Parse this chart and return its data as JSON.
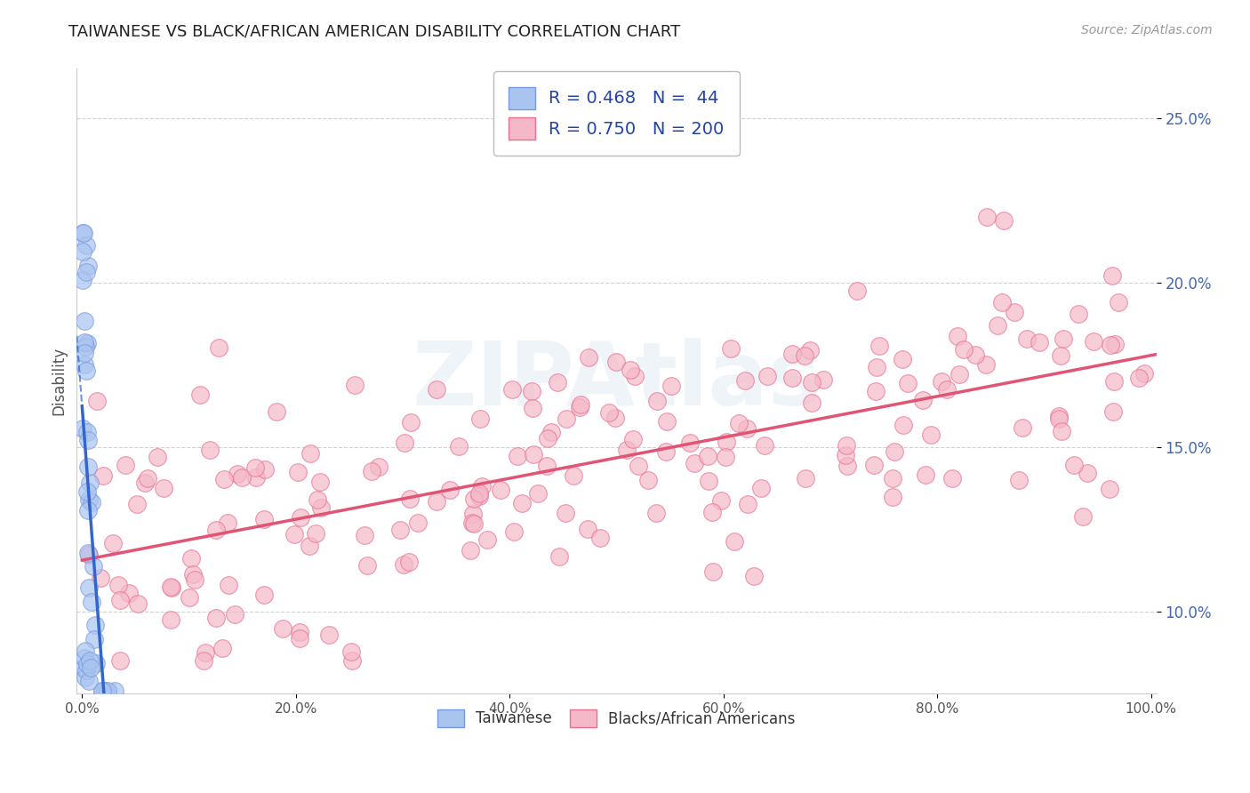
{
  "title": "TAIWANESE VS BLACK/AFRICAN AMERICAN DISABILITY CORRELATION CHART",
  "source": "Source: ZipAtlas.com",
  "ylabel": "Disability",
  "r_taiwanese": 0.468,
  "n_taiwanese": 44,
  "r_black": 0.75,
  "n_black": 200,
  "taiwanese_scatter_color": "#aac4f0",
  "taiwanese_edge_color": "#7799dd",
  "black_scatter_color": "#f5b8c8",
  "black_edge_color": "#e87090",
  "trendline_taiwanese_color": "#3366cc",
  "trendline_black_color": "#e05575",
  "background_color": "#ffffff",
  "title_color": "#222222",
  "source_color": "#999999",
  "legend_text_color": "#2244aa",
  "axis_label_color": "#4466aa",
  "xlim": [
    -0.005,
    1.005
  ],
  "ylim": [
    0.075,
    0.265
  ],
  "x_ticks": [
    0.0,
    0.2,
    0.4,
    0.6,
    0.8,
    1.0
  ],
  "x_tick_labels": [
    "0.0%",
    "20.0%",
    "40.0%",
    "60.0%",
    "80.0%",
    "100.0%"
  ],
  "y_ticks": [
    0.1,
    0.15,
    0.2,
    0.25
  ],
  "y_tick_labels": [
    "10.0%",
    "15.0%",
    "20.0%",
    "25.0%"
  ],
  "grid_color": "#cccccc",
  "watermark": "ZIPAtlas"
}
